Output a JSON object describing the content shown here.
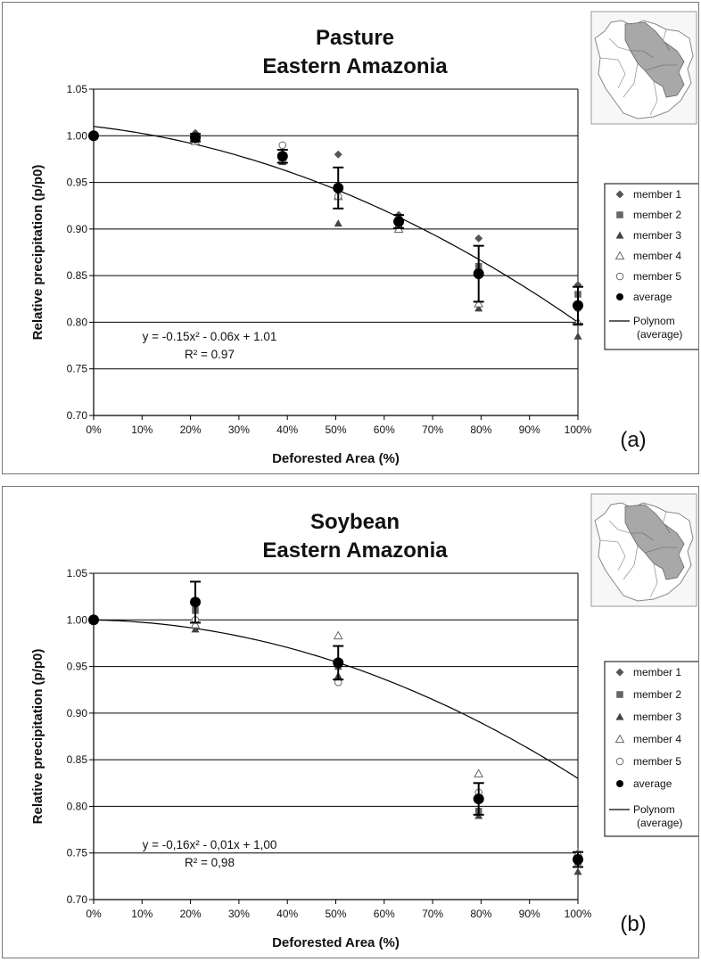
{
  "chart_data": [
    {
      "type": "scatter",
      "title": "Pasture",
      "subtitle": "Eastern Amazonia",
      "xlabel": "Deforested Area (%)",
      "ylabel": "Relative precipitation (p/p0)",
      "panel_label": "(a)",
      "equation": "y = -0.15x² - 0.06x + 1.01",
      "r2": "R² = 0.97",
      "xlim": [
        0,
        100
      ],
      "ylim": [
        0.7,
        1.05
      ],
      "xticks": [
        "0%",
        "10%",
        "20%",
        "30%",
        "40%",
        "50%",
        "60%",
        "70%",
        "80%",
        "90%",
        "100%"
      ],
      "yticks": [
        "0.70",
        "0.75",
        "0.80",
        "0.85",
        "0.90",
        "0.95",
        "1.00",
        "1.05"
      ],
      "grid": "horizontal",
      "legend_position": "right",
      "x": [
        0,
        21,
        39,
        50.5,
        63,
        79.5,
        100
      ],
      "series": [
        {
          "name": "member 1",
          "marker": "diamond",
          "values": [
            1.0,
            1.003,
            0.98,
            0.98,
            0.915,
            0.89,
            0.84
          ]
        },
        {
          "name": "member 2",
          "marker": "square",
          "values": [
            1.0,
            0.998,
            0.975,
            0.945,
            0.91,
            0.86,
            0.83
          ]
        },
        {
          "name": "member 3",
          "marker": "triangle",
          "values": [
            1.0,
            0.996,
            0.972,
            0.906,
            0.905,
            0.815,
            0.785
          ]
        },
        {
          "name": "member 4",
          "marker": "triangle-open",
          "values": [
            1.0,
            0.994,
            0.975,
            0.935,
            0.9,
            0.82,
            0.8
          ]
        },
        {
          "name": "member 5",
          "marker": "circle-open",
          "values": [
            1.0,
            0.996,
            0.99,
            0.935,
            0.905,
            0.85,
            0.815
          ]
        },
        {
          "name": "average",
          "marker": "circle",
          "values": [
            1.0,
            0.998,
            0.978,
            0.944,
            0.908,
            0.852,
            0.818
          ],
          "error": [
            0,
            0.004,
            0.007,
            0.022,
            0.007,
            0.03,
            0.02
          ]
        }
      ],
      "trend": {
        "name": "Polynom (average)",
        "coefficients": [
          -0.15,
          -0.06,
          1.01
        ]
      },
      "legend": [
        "member 1",
        "member 2",
        "member 3",
        "member 4",
        "member 5",
        "average",
        "Polynom",
        "(average)"
      ]
    },
    {
      "type": "scatter",
      "title": "Soybean",
      "subtitle": "Eastern Amazonia",
      "xlabel": "Deforested Area (%)",
      "ylabel": "Relative precipitation (p/p0)",
      "panel_label": "(b)",
      "equation": "y = -0,16x² - 0,01x + 1,00",
      "r2": "R² = 0,98",
      "xlim": [
        0,
        100
      ],
      "ylim": [
        0.7,
        1.05
      ],
      "xticks": [
        "0%",
        "10%",
        "20%",
        "30%",
        "40%",
        "50%",
        "60%",
        "70%",
        "80%",
        "90%",
        "100%"
      ],
      "yticks": [
        "0.70",
        "0.75",
        "0.80",
        "0.85",
        "0.90",
        "0.95",
        "1.00",
        "1.05"
      ],
      "grid": "horizontal",
      "legend_position": "right",
      "x": [
        0,
        21,
        50.5,
        79.5,
        100
      ],
      "series": [
        {
          "name": "member 1",
          "marker": "diamond",
          "values": [
            1.0,
            1.02,
            0.955,
            0.81,
            0.745
          ]
        },
        {
          "name": "member 2",
          "marker": "square",
          "values": [
            1.0,
            1.01,
            0.95,
            0.795,
            0.74
          ]
        },
        {
          "name": "member 3",
          "marker": "triangle",
          "values": [
            1.0,
            0.99,
            0.94,
            0.79,
            0.73
          ]
        },
        {
          "name": "member 4",
          "marker": "triangle-open",
          "values": [
            1.0,
            0.995,
            0.983,
            0.835,
            0.75
          ]
        },
        {
          "name": "member 5",
          "marker": "circle-open",
          "values": [
            1.0,
            1.0,
            0.933,
            0.815,
            0.745
          ]
        },
        {
          "name": "average",
          "marker": "circle",
          "values": [
            1.0,
            1.019,
            0.954,
            0.808,
            0.743
          ],
          "error": [
            0,
            0.022,
            0.018,
            0.017,
            0.008
          ]
        }
      ],
      "trend": {
        "name": "Polynom (average)",
        "coefficients": [
          -0.16,
          -0.01,
          1.0
        ]
      },
      "legend": [
        "member 1",
        "member 2",
        "member 3",
        "member 4",
        "member 5",
        "average",
        "Polynom",
        "(average)"
      ]
    }
  ]
}
